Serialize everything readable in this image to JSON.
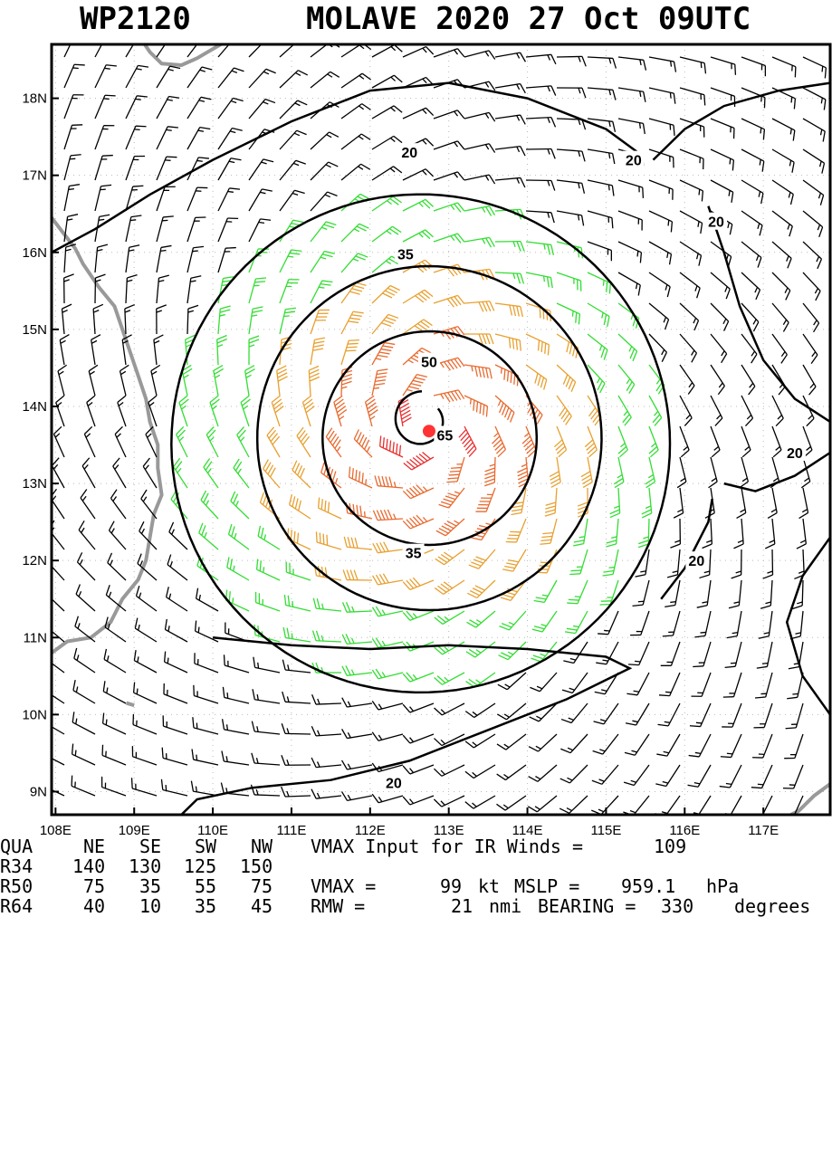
{
  "title": {
    "storm_id": "WP2120",
    "storm_desc": "MOLAVE 2020 27 Oct 09UTC"
  },
  "map": {
    "lon_labels": [
      "108E",
      "109E",
      "110E",
      "111E",
      "112E",
      "113E",
      "114E",
      "115E",
      "116E",
      "117E"
    ],
    "lat_labels": [
      "18N",
      "17N",
      "16N",
      "15N",
      "14N",
      "13N",
      "12N",
      "11N",
      "10N",
      "9N"
    ],
    "lon_range": [
      107.95,
      117.85
    ],
    "lat_range": [
      8.7,
      18.7
    ],
    "center": {
      "lon": 112.75,
      "lat": 13.68
    },
    "contour_labels": [
      "20",
      "20",
      "20",
      "20",
      "20",
      "20",
      "35",
      "35",
      "50",
      "65"
    ],
    "colors": {
      "lt34": "#000000",
      "gale": "#33dd33",
      "storm": "#e8a030",
      "hurricane": "#e83030",
      "coast": "#999999",
      "center": "#ff3333"
    }
  },
  "stats": {
    "header": {
      "qua": "QUA",
      "ne": "NE",
      "se": "SE",
      "sw": "SW",
      "nw": "NW",
      "vmax_input_label": "VMAX Input for IR Winds =",
      "vmax_input_value": "109"
    },
    "r34": {
      "label": "R34",
      "ne": "140",
      "se": "130",
      "sw": "125",
      "nw": "150"
    },
    "r50": {
      "label": "R50",
      "ne": "75",
      "se": "35",
      "sw": "55",
      "nw": "75",
      "vmax_label": "VMAX =",
      "vmax_value": "99",
      "vmax_unit": "kt",
      "mslp_label": "MSLP =",
      "mslp_value": "959.1",
      "mslp_unit": "hPa"
    },
    "r64": {
      "label": "R64",
      "ne": "40",
      "se": "10",
      "sw": "35",
      "nw": "45",
      "rmw_label": "RMW =",
      "rmw_value": "21",
      "rmw_unit": "nmi",
      "bearing_label": "BEARING =",
      "bearing_value": "330",
      "bearing_unit": "degrees"
    }
  }
}
